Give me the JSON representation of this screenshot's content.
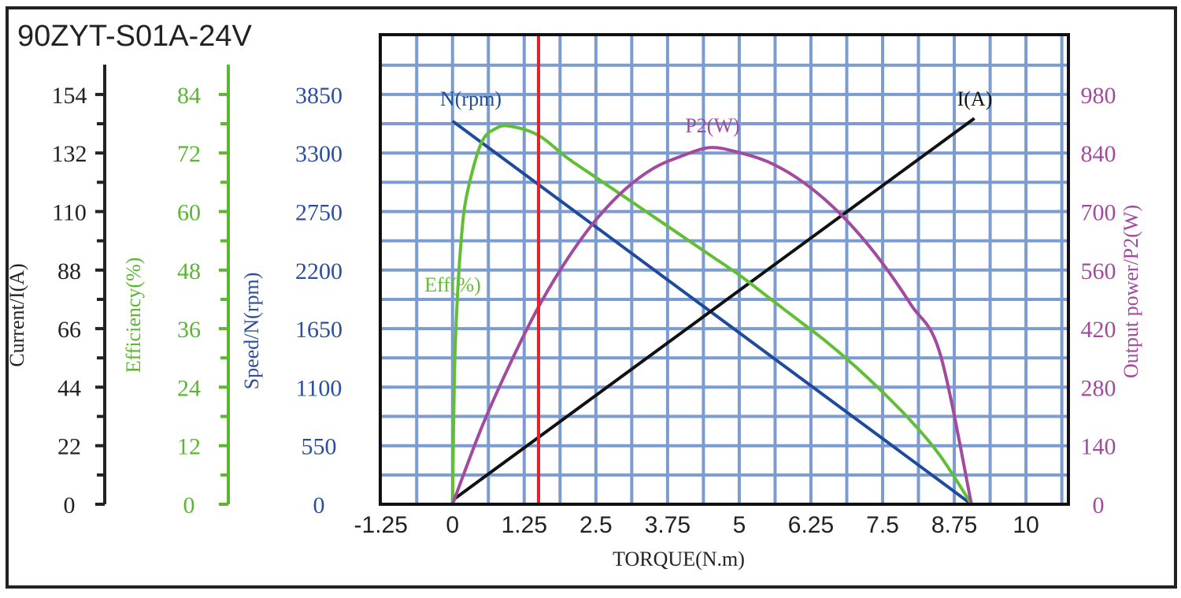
{
  "chart_data": {
    "type": "line",
    "title": "90ZYT-S01A-24V",
    "xlabel": "TORQUE(N.m)",
    "x_ticks": [
      "-1.25",
      "0",
      "1.25",
      "2.5",
      "3.75",
      "5",
      "6.25",
      "7.5",
      "8.75",
      "10"
    ],
    "xlim": [
      -1.26,
      10.74
    ],
    "grid": true,
    "marker_line": {
      "x": 1.5,
      "color": "#e8202a"
    },
    "axes": [
      {
        "id": "current",
        "label": "Current/I(A)",
        "side": "left",
        "ticks": [
          "0",
          "22",
          "44",
          "66",
          "88",
          "110",
          "132",
          "154"
        ],
        "max_tick": 154,
        "color": "#222222"
      },
      {
        "id": "eff",
        "label": "Efficiency(%)",
        "side": "left",
        "ticks": [
          "0",
          "12",
          "24",
          "36",
          "48",
          "60",
          "72",
          "84"
        ],
        "max_tick": 84,
        "color": "#5bb731"
      },
      {
        "id": "speed",
        "label": "Speed/N(rpm)",
        "side": "left",
        "ticks": [
          "0",
          "550",
          "1100",
          "1650",
          "2200",
          "2750",
          "3300",
          "3850"
        ],
        "max_tick": 3850,
        "color": "#2b4f9e"
      },
      {
        "id": "p2",
        "label": "Output power/P2(W)",
        "side": "right",
        "ticks": [
          "0",
          "140",
          "280",
          "420",
          "560",
          "700",
          "840",
          "980"
        ],
        "max_tick": 980,
        "color": "#a24a9e"
      }
    ],
    "series": [
      {
        "name": "N(rpm)",
        "axis": "speed",
        "color": "#1f4b9c",
        "x": [
          0,
          9.05
        ],
        "y": [
          3600,
          0
        ]
      },
      {
        "name": "I(A)",
        "axis": "current",
        "color": "#111111",
        "x": [
          0,
          9.1
        ],
        "y": [
          1.5,
          145
        ]
      },
      {
        "name": "Eff(%)",
        "axis": "eff",
        "color": "#62bf35",
        "x": [
          0,
          0.03,
          0.07,
          0.15,
          0.25,
          0.5,
          0.75,
          1,
          1.5,
          2,
          2.5,
          3,
          3.5,
          4,
          4.5,
          5,
          5.5,
          6,
          6.5,
          7,
          7.5,
          8,
          8.5,
          9.05
        ],
        "y": [
          0,
          25,
          39,
          54,
          63.5,
          74,
          77,
          77.5,
          75.6,
          71,
          67,
          63,
          59,
          55,
          51,
          47,
          42.5,
          38,
          33.5,
          28.5,
          23,
          17,
          10,
          0
        ]
      },
      {
        "name": "P2(W)",
        "axis": "p2",
        "color": "#a24a9e",
        "x": [
          0,
          0.5,
          1,
          1.5,
          2,
          2.5,
          3,
          3.5,
          4,
          4.5,
          5,
          5.5,
          6,
          6.5,
          7,
          7.5,
          8,
          8.5,
          9.05
        ],
        "y": [
          0,
          181,
          335,
          472,
          586,
          680,
          752,
          803,
          833,
          853,
          841,
          819,
          781,
          728,
          660,
          576,
          476,
          361,
          0
        ]
      }
    ]
  }
}
